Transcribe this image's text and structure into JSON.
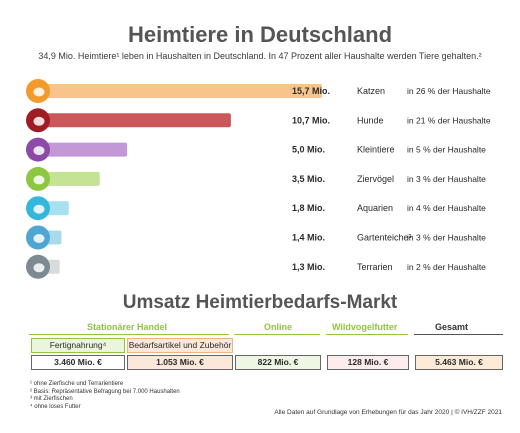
{
  "title": "Heimtiere in Deutschland",
  "subtitle": "34,9 Mio. Heimtiere¹ leben in Haushalten in Deutschland. In 47 Prozent aller Haushalte werden Tiere gehalten.²",
  "chart_data": {
    "type": "bar",
    "orientation": "horizontal",
    "title": "Heimtiere in Deutschland",
    "unit": "Mio.",
    "categories": [
      "Katzen",
      "Hunde",
      "Kleintiere",
      "Ziervögel",
      "Aquarien",
      "Gartenteiche³",
      "Terrarien"
    ],
    "values": [
      15.7,
      10.7,
      5.0,
      3.5,
      1.8,
      1.4,
      1.3
    ],
    "value_labels": [
      "15,7 Mio.",
      "10,7 Mio.",
      "5,0 Mio.",
      "3,5 Mio.",
      "1,8 Mio.",
      "1,4 Mio.",
      "1,3 Mio."
    ],
    "household_share_labels": [
      "in 26 % der Haushalte",
      "in 21 % der Haushalte",
      "in 5 % der Haushalte",
      "in 3 % der Haushalte",
      "in 4 % der Haushalte",
      "in 3 % der Haushalte",
      "in 2 % der Haushalte"
    ],
    "household_share_percent": [
      26,
      21,
      5,
      3,
      4,
      3,
      2
    ],
    "icons": [
      "cat-icon",
      "dog-icon",
      "rabbit-icon",
      "bird-icon",
      "fish-icon",
      "pond-fish-icon",
      "turtle-icon"
    ],
    "bar_colors": [
      "#f7c48b",
      "#c9585d",
      "#c498d6",
      "#c5e394",
      "#a7e1ef",
      "#a9d9ea",
      "#d7dbdc"
    ],
    "icon_colors": [
      "#f29a2b",
      "#9e1c22",
      "#8e4aa8",
      "#8dc63f",
      "#35b6dc",
      "#4fa6d2",
      "#7c8a91"
    ],
    "grid": false
  },
  "market": {
    "title": "Umsatz Heimtierbedarfs-Markt",
    "headers": {
      "stationary": "Stationärer Handel",
      "online": "Online",
      "wild_bird": "Wildvogelfutter",
      "total": "Gesamt"
    },
    "subheaders": {
      "food": "Fertignahrung⁴",
      "supplies": "Bedarfsartikel und Zubehör"
    },
    "values": {
      "food": "3.460 Mio. €",
      "supplies": "1.053 Mio. €",
      "online": "822 Mio. €",
      "wild_bird": "128 Mio. €",
      "total": "5.463 Mio. €"
    },
    "colors": {
      "stationary": "#8dc63f",
      "online": "#8dc63f",
      "wild_bird": "#8dc63f",
      "total": "#555555",
      "food_box": "#eaf5dc",
      "supplies_box": "#fbe8da",
      "online_box": "#eef7e4",
      "wild_box": "#fcecec",
      "total_box": "#fdebd8"
    }
  },
  "footnotes": [
    "¹ ohne Zierfische und Terrarientiere",
    "² Basis: Repräsentative Befragung bei 7.000 Haushalten",
    "³ mit Zierfischen",
    "⁴ ohne loses Futter"
  ],
  "source": "Alle Daten auf Grundlage von Erhebungen für das Jahr 2020 | © IVH/ZZF 2021"
}
